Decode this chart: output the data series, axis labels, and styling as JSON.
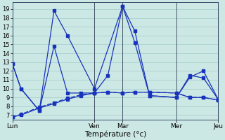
{
  "background_color": "#cce8e5",
  "grid_color": "#99c4c0",
  "line_color": "#1833bb",
  "xlabel": "Température (°c)",
  "yticks": [
    7,
    8,
    9,
    10,
    11,
    12,
    13,
    14,
    15,
    16,
    17,
    18,
    19
  ],
  "ylim": [
    6.5,
    19.8
  ],
  "xlim": [
    0,
    168
  ],
  "x_day_ticks": [
    0,
    67,
    90,
    134,
    168
  ],
  "x_day_labels": [
    "Lun",
    "Ven",
    "Mar",
    "Mer",
    "Jeu"
  ],
  "x_vlines": [
    67,
    90,
    134,
    168
  ],
  "line_solid1_x": [
    0,
    7,
    22,
    34,
    45,
    67,
    90,
    100,
    112,
    134,
    145,
    156,
    168
  ],
  "line_solid1_y": [
    12.8,
    10.0,
    7.5,
    18.8,
    16.0,
    10.0,
    19.3,
    16.5,
    9.2,
    9.0,
    11.5,
    11.2,
    8.8
  ],
  "line_solid2_x": [
    0,
    7,
    22,
    34,
    45,
    56,
    67,
    78,
    90,
    100,
    112,
    134,
    145,
    156,
    168
  ],
  "line_solid2_y": [
    12.8,
    10.0,
    7.5,
    14.8,
    9.5,
    9.5,
    9.5,
    11.5,
    19.3,
    15.2,
    9.2,
    9.0,
    11.3,
    12.0,
    8.8
  ],
  "line_flat1_x": [
    0,
    7,
    22,
    34,
    45,
    56,
    67,
    78,
    90,
    100,
    112,
    134,
    145,
    156,
    168
  ],
  "line_flat1_y": [
    6.8,
    7.0,
    7.8,
    8.3,
    8.8,
    9.2,
    9.5,
    9.6,
    9.5,
    9.6,
    9.6,
    9.5,
    9.0,
    9.0,
    8.7
  ],
  "line_flat2_x": [
    0,
    7,
    22,
    34,
    45,
    56,
    67,
    78,
    90,
    100,
    112,
    134,
    145,
    156,
    168
  ],
  "line_flat2_y": [
    6.8,
    7.1,
    7.9,
    8.4,
    8.9,
    9.3,
    9.5,
    9.6,
    9.5,
    9.6,
    9.6,
    9.5,
    9.0,
    9.0,
    8.7
  ]
}
